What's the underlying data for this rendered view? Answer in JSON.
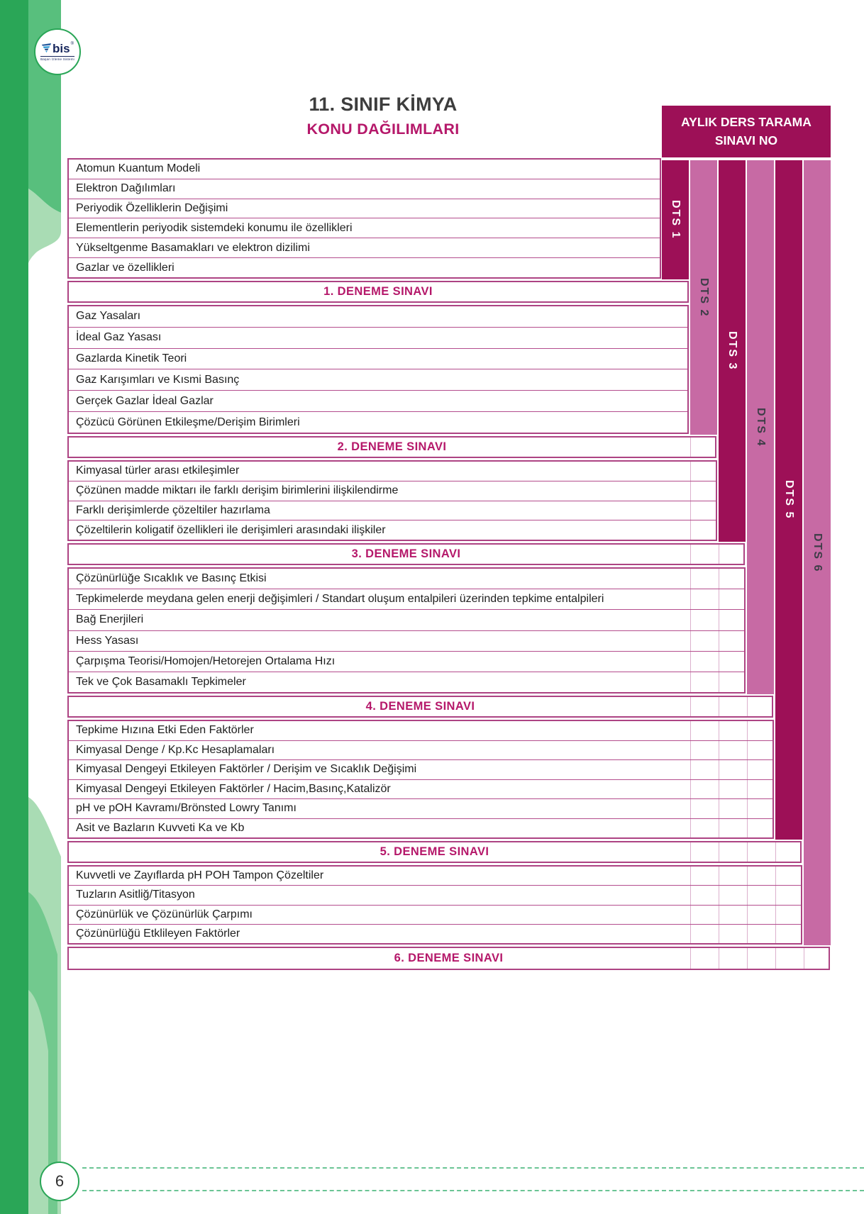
{
  "page": {
    "number": "6"
  },
  "logo": {
    "text": "bis",
    "reg": "®",
    "tagline": "Başarı İzleme Sistemi"
  },
  "header": {
    "title": "11. SINIF KİMYA",
    "subtitle": "KONU DAĞILIMLARI",
    "exam_box_line1": "AYLIK DERS TARAMA",
    "exam_box_line2": "SINAVI NO"
  },
  "colors": {
    "accent_dark_magenta": "#9d1057",
    "accent_pink": "#c76aa4",
    "magenta_text": "#b5186a",
    "row_border": "#ad4383",
    "green_dark": "#2aa657",
    "green_mid": "#58bf7d",
    "green_light": "#a9dcb4",
    "navy": "#16265c"
  },
  "table": {
    "sections": [
      {
        "topics": [
          "Atomun Kuantum Modeli",
          "Elektron Dağılımları",
          "Periyodik Özelliklerin Değişimi",
          "Elementlerin periyodik sistemdeki konumu ile özellikleri",
          "Yükseltgenme Basamakları ve elektron dizilimi",
          "Gazlar ve özellikleri"
        ],
        "exam_label": "1. DENEME SINAVI"
      },
      {
        "topics": [
          "Gaz Yasaları",
          "İdeal Gaz Yasası",
          "Gazlarda Kinetik Teori",
          "Gaz Karışımları ve Kısmi Basınç",
          "Gerçek Gazlar İdeal Gazlar",
          "Çözücü Görünen Etkileşme/Derişim Birimleri"
        ],
        "exam_label": "2. DENEME SINAVI"
      },
      {
        "topics": [
          "Kimyasal türler arası etkileşimler",
          "Çözünen madde miktarı ile farklı derişim birimlerini ilişkilendirme",
          "Farklı derişimlerde çözeltiler hazırlama",
          "Çözeltilerin koligatif özellikleri ile derişimleri arasındaki ilişkiler"
        ],
        "exam_label": "3. DENEME SINAVI"
      },
      {
        "topics": [
          "Çözünürlüğe Sıcaklık ve Basınç Etkisi",
          "Tepkimelerde meydana gelen enerji değişimleri / Standart oluşum entalpileri üzerinden tepkime entalpileri",
          "Bağ Enerjileri",
          "Hess Yasası",
          "Çarpışma Teorisi/Homojen/Hetorejen Ortalama Hızı",
          "Tek ve Çok Basamaklı Tepkimeler"
        ],
        "exam_label": "4. DENEME SINAVI"
      },
      {
        "topics": [
          "Tepkime Hızına Etki Eden Faktörler",
          "Kimyasal Denge / Kp.Kc Hesaplamaları",
          "Kimyasal Dengeyi Etkileyen Faktörler / Derişim ve Sıcaklık Değişimi",
          "Kimyasal Dengeyi Etkileyen Faktörler / Hacim,Basınç,Katalizör",
          "pH ve pOH Kavramı/Brönsted Lowry Tanımı",
          "Asit ve Bazların Kuvveti Ka ve Kb"
        ],
        "exam_label": "5. DENEME SINAVI"
      },
      {
        "topics": [
          "Kuvvetli ve Zayıflarda pH POH Tampon Çözeltiler",
          "Tuzların Asitliğ/Titasyon",
          "Çözünürlük ve Çözünürlük Çarpımı",
          "Çözünürlüğü Etklileyen Faktörler"
        ],
        "exam_label": "6. DENEME SINAVI"
      }
    ],
    "dts_columns": [
      {
        "label": "DTS 1",
        "shade": "dark"
      },
      {
        "label": "DTS 2",
        "shade": "pink"
      },
      {
        "label": "DTS 3",
        "shade": "dark"
      },
      {
        "label": "DTS 4",
        "shade": "pink"
      },
      {
        "label": "DTS 5",
        "shade": "dark"
      },
      {
        "label": "DTS 6",
        "shade": "pink"
      }
    ]
  }
}
